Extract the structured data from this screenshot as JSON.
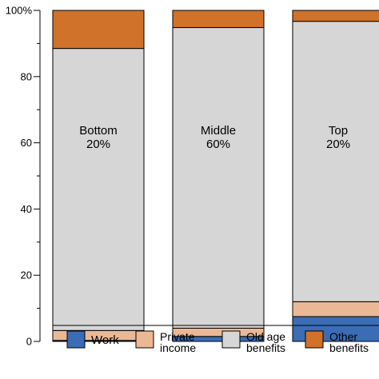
{
  "chart_data": {
    "type": "bar",
    "stacked": true,
    "percent_stacked": true,
    "ylim": [
      0,
      100
    ],
    "y_ticks": [
      {
        "value": 0,
        "label": "0"
      },
      {
        "value": 20,
        "label": "20"
      },
      {
        "value": 40,
        "label": "40"
      },
      {
        "value": 60,
        "label": "60"
      },
      {
        "value": 80,
        "label": "80"
      },
      {
        "value": 100,
        "label": "100%"
      }
    ],
    "y_minor_ticks": [
      10,
      30,
      50,
      70,
      90
    ],
    "categories": [
      {
        "name": "Bottom",
        "share": "20%"
      },
      {
        "name": "Middle",
        "share": "60%"
      },
      {
        "name": "Top",
        "share": "20%"
      }
    ],
    "series": [
      {
        "name_lines": [
          "Work"
        ],
        "color": "#3a6db5",
        "values": [
          0.3,
          1.5,
          7.5
        ]
      },
      {
        "name_lines": [
          "Private",
          "income"
        ],
        "color": "#ebb896",
        "values": [
          3.0,
          2.5,
          4.5
        ]
      },
      {
        "name_lines": [
          "Old age",
          "benefits"
        ],
        "color": "#d6d6d6",
        "values": [
          85.2,
          90.8,
          84.7
        ]
      },
      {
        "name_lines": [
          "Other",
          "benefits"
        ],
        "color": "#d0722a",
        "values": [
          11.5,
          5.2,
          3.3
        ]
      }
    ],
    "legend_position": "bottom",
    "grid": false
  }
}
